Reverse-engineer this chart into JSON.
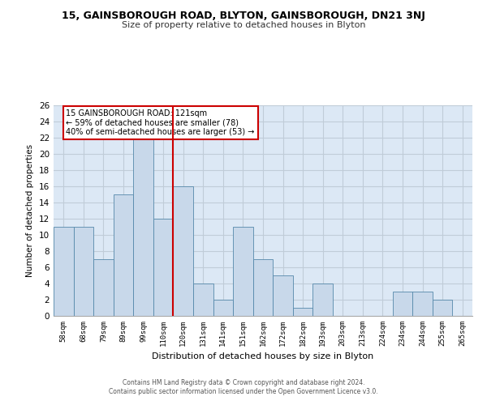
{
  "title_line1": "15, GAINSBOROUGH ROAD, BLYTON, GAINSBOROUGH, DN21 3NJ",
  "title_line2": "Size of property relative to detached houses in Blyton",
  "xlabel": "Distribution of detached houses by size in Blyton",
  "ylabel": "Number of detached properties",
  "bin_labels": [
    "58sqm",
    "68sqm",
    "79sqm",
    "89sqm",
    "99sqm",
    "110sqm",
    "120sqm",
    "131sqm",
    "141sqm",
    "151sqm",
    "162sqm",
    "172sqm",
    "182sqm",
    "193sqm",
    "203sqm",
    "213sqm",
    "224sqm",
    "234sqm",
    "244sqm",
    "255sqm",
    "265sqm"
  ],
  "bar_heights": [
    11,
    11,
    7,
    15,
    22,
    12,
    16,
    4,
    2,
    11,
    7,
    5,
    1,
    4,
    0,
    0,
    0,
    3,
    3,
    2,
    0
  ],
  "bar_color": "#c8d8ea",
  "bar_edge_color": "#5588aa",
  "red_line_index": 6,
  "annotation_title": "15 GAINSBOROUGH ROAD: 121sqm",
  "annotation_line1": "← 59% of detached houses are smaller (78)",
  "annotation_line2": "40% of semi-detached houses are larger (53) →",
  "annotation_box_color": "#ffffff",
  "annotation_box_edge": "#cc0000",
  "red_line_color": "#cc0000",
  "ylim": [
    0,
    26
  ],
  "yticks": [
    0,
    2,
    4,
    6,
    8,
    10,
    12,
    14,
    16,
    18,
    20,
    22,
    24,
    26
  ],
  "background_color": "#dce8f5",
  "grid_color": "#c0ccd8",
  "footer_line1": "Contains HM Land Registry data © Crown copyright and database right 2024.",
  "footer_line2": "Contains public sector information licensed under the Open Government Licence v3.0."
}
